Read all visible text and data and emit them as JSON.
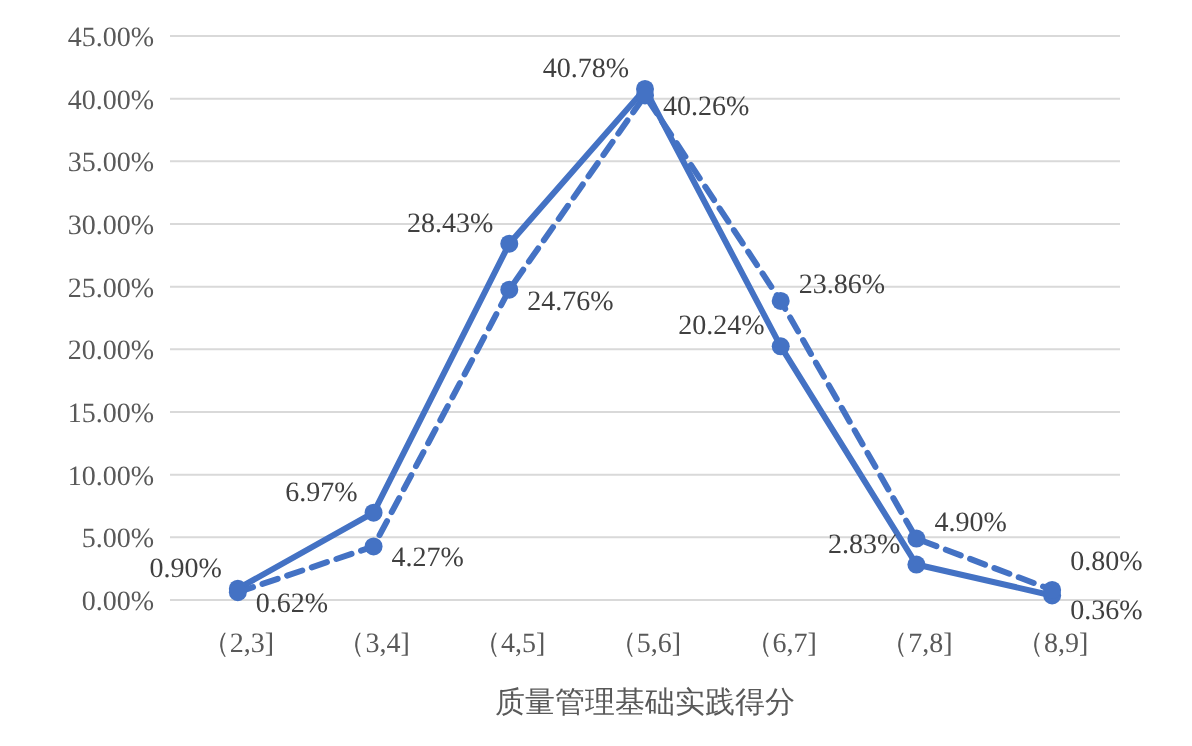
{
  "chart_data": {
    "type": "line",
    "xlabel": "质量管理基础实践得分",
    "categories": [
      "（2,3]",
      "（3,4]",
      "（4,5]",
      "（5,6]",
      "（6,7]",
      "（7,8]",
      "（8,9]"
    ],
    "series": [
      {
        "color": "#4472c4",
        "line_style": "solid",
        "values": [
          0.9,
          6.97,
          28.43,
          40.78,
          20.24,
          2.83,
          0.36
        ],
        "value_labels": [
          "0.90%",
          "6.97%",
          "28.43%",
          "40.78%",
          "20.24%",
          "2.83%",
          "0.36%"
        ]
      },
      {
        "color": "#4472c4",
        "line_style": "dashed",
        "values": [
          0.62,
          4.27,
          24.76,
          40.26,
          23.86,
          4.9,
          0.8
        ],
        "value_labels": [
          "0.62%",
          "4.27%",
          "24.76%",
          "40.26%",
          "23.86%",
          "4.90%",
          "0.80%"
        ]
      }
    ],
    "ylim": [
      0,
      45
    ],
    "yticks": [
      {
        "value": 0,
        "label": "0.00%"
      },
      {
        "value": 5,
        "label": "5.00%"
      },
      {
        "value": 10,
        "label": "10.00%"
      },
      {
        "value": 15,
        "label": "15.00%"
      },
      {
        "value": 20,
        "label": "20.00%"
      },
      {
        "value": 25,
        "label": "25.00%"
      },
      {
        "value": 30,
        "label": "30.00%"
      },
      {
        "value": 35,
        "label": "35.00%"
      },
      {
        "value": 40,
        "label": "40.00%"
      },
      {
        "value": 45,
        "label": "45.00%"
      }
    ],
    "grid": "y",
    "marker": "circle"
  }
}
